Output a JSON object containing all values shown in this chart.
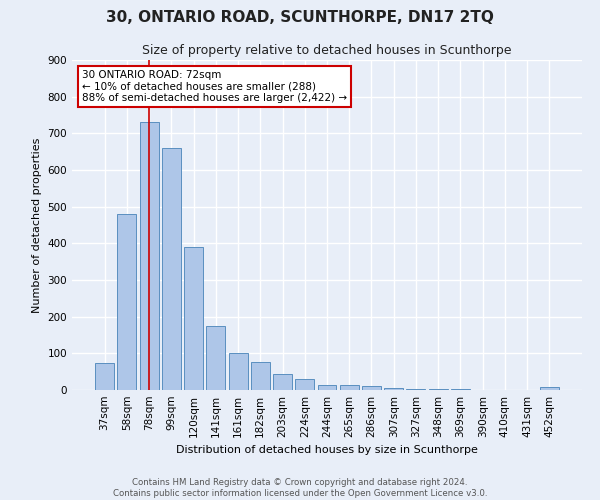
{
  "title": "30, ONTARIO ROAD, SCUNTHORPE, DN17 2TQ",
  "subtitle": "Size of property relative to detached houses in Scunthorpe",
  "xlabel": "Distribution of detached houses by size in Scunthorpe",
  "ylabel": "Number of detached properties",
  "bar_labels": [
    "37sqm",
    "58sqm",
    "78sqm",
    "99sqm",
    "120sqm",
    "141sqm",
    "161sqm",
    "182sqm",
    "203sqm",
    "224sqm",
    "244sqm",
    "265sqm",
    "286sqm",
    "307sqm",
    "327sqm",
    "348sqm",
    "369sqm",
    "390sqm",
    "410sqm",
    "431sqm",
    "452sqm"
  ],
  "bar_values": [
    75,
    480,
    730,
    660,
    390,
    175,
    100,
    77,
    45,
    30,
    15,
    13,
    10,
    6,
    2,
    2,
    2,
    1,
    0,
    0,
    8
  ],
  "bar_color": "#aec6e8",
  "bar_edge_color": "#5a8fc0",
  "vline_x": 2,
  "vline_color": "#cc0000",
  "annotation_line1": "30 ONTARIO ROAD: 72sqm",
  "annotation_line2": "← 10% of detached houses are smaller (288)",
  "annotation_line3": "88% of semi-detached houses are larger (2,422) →",
  "annotation_box_color": "#ffffff",
  "annotation_box_edge": "#cc0000",
  "ylim": [
    0,
    900
  ],
  "yticks": [
    0,
    100,
    200,
    300,
    400,
    500,
    600,
    700,
    800,
    900
  ],
  "footer_text": "Contains HM Land Registry data © Crown copyright and database right 2024.\nContains public sector information licensed under the Open Government Licence v3.0.",
  "bg_color": "#e8eef8",
  "plot_bg_color": "#e8eef8",
  "grid_color": "#ffffff"
}
